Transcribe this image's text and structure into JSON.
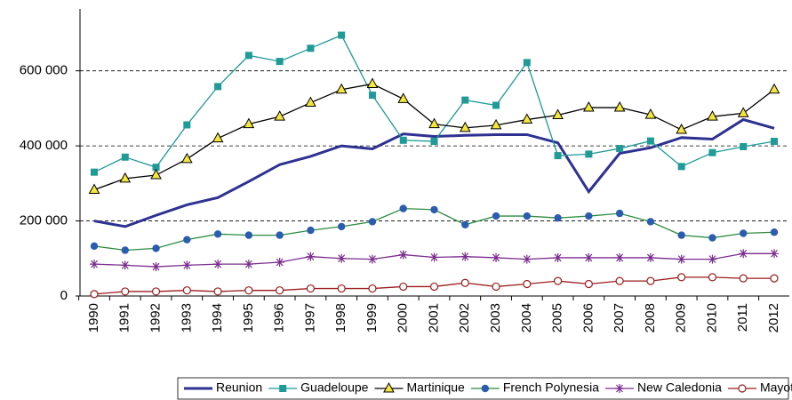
{
  "chart_data": {
    "type": "line",
    "categories": [
      "1990",
      "1991",
      "1992",
      "1993",
      "1994",
      "1995",
      "1996",
      "1997",
      "1998",
      "1999",
      "2000",
      "2001",
      "2002",
      "2003",
      "2004",
      "2005",
      "2006",
      "2007",
      "2008",
      "2009",
      "2010",
      "2011",
      "2012"
    ],
    "ylim": [
      0,
      765000
    ],
    "yticks": [
      {
        "value": 0,
        "label": "0"
      },
      {
        "value": 200000,
        "label": "200 000"
      },
      {
        "value": 400000,
        "label": "400 000"
      },
      {
        "value": 600000,
        "label": "600 000"
      }
    ],
    "grid": true,
    "legend": "bottom",
    "series": [
      {
        "name": "Reunion",
        "color": "#2e3192",
        "marker": "none",
        "values": [
          200000,
          185000,
          215000,
          243000,
          262000,
          305000,
          350000,
          372000,
          400000,
          392000,
          432000,
          425000,
          428000,
          430000,
          430000,
          408000,
          278000,
          380000,
          395000,
          422000,
          418000,
          470000,
          447000
        ]
      },
      {
        "name": "Guadeloupe",
        "color": "#1f9a96",
        "marker": "square",
        "marker_color": "#1f9a96",
        "values": [
          330000,
          370000,
          343000,
          456000,
          558000,
          641000,
          625000,
          660000,
          695000,
          535000,
          415000,
          412000,
          522000,
          508000,
          622000,
          374000,
          378000,
          393000,
          413000,
          345000,
          382000,
          398000,
          412000
        ]
      },
      {
        "name": "Martinique",
        "color": "#000000",
        "marker": "triangle",
        "marker_color": "#f5e63c",
        "values": [
          283000,
          313000,
          322000,
          365000,
          420000,
          458000,
          478000,
          515000,
          550000,
          565000,
          525000,
          458000,
          448000,
          455000,
          470000,
          482000,
          502000,
          502000,
          483000,
          443000,
          478000,
          487000,
          550000
        ]
      },
      {
        "name": "French Polynesia",
        "color": "#2e8b3e",
        "marker": "circle",
        "marker_color": "#2a5db0",
        "values": [
          133000,
          122000,
          127000,
          150000,
          165000,
          162000,
          162000,
          175000,
          185000,
          198000,
          233000,
          230000,
          190000,
          213000,
          213000,
          208000,
          213000,
          220000,
          198000,
          162000,
          155000,
          167000,
          170000
        ]
      },
      {
        "name": "New Caledonia",
        "color": "#7b2c8f",
        "marker": "star",
        "marker_color": "#7b2c8f",
        "values": [
          85000,
          82000,
          78000,
          82000,
          85000,
          85000,
          90000,
          105000,
          100000,
          98000,
          110000,
          103000,
          105000,
          102000,
          98000,
          102000,
          102000,
          102000,
          102000,
          98000,
          98000,
          113000,
          113000
        ]
      },
      {
        "name": "Mayotte",
        "color": "#9b1c1c",
        "marker": "open-circle",
        "marker_color": "#ffffff",
        "values": [
          5000,
          12000,
          12000,
          15000,
          12000,
          15000,
          15000,
          20000,
          20000,
          20000,
          25000,
          25000,
          35000,
          25000,
          32000,
          40000,
          32000,
          40000,
          40000,
          50000,
          50000,
          47000,
          47000
        ]
      }
    ]
  }
}
